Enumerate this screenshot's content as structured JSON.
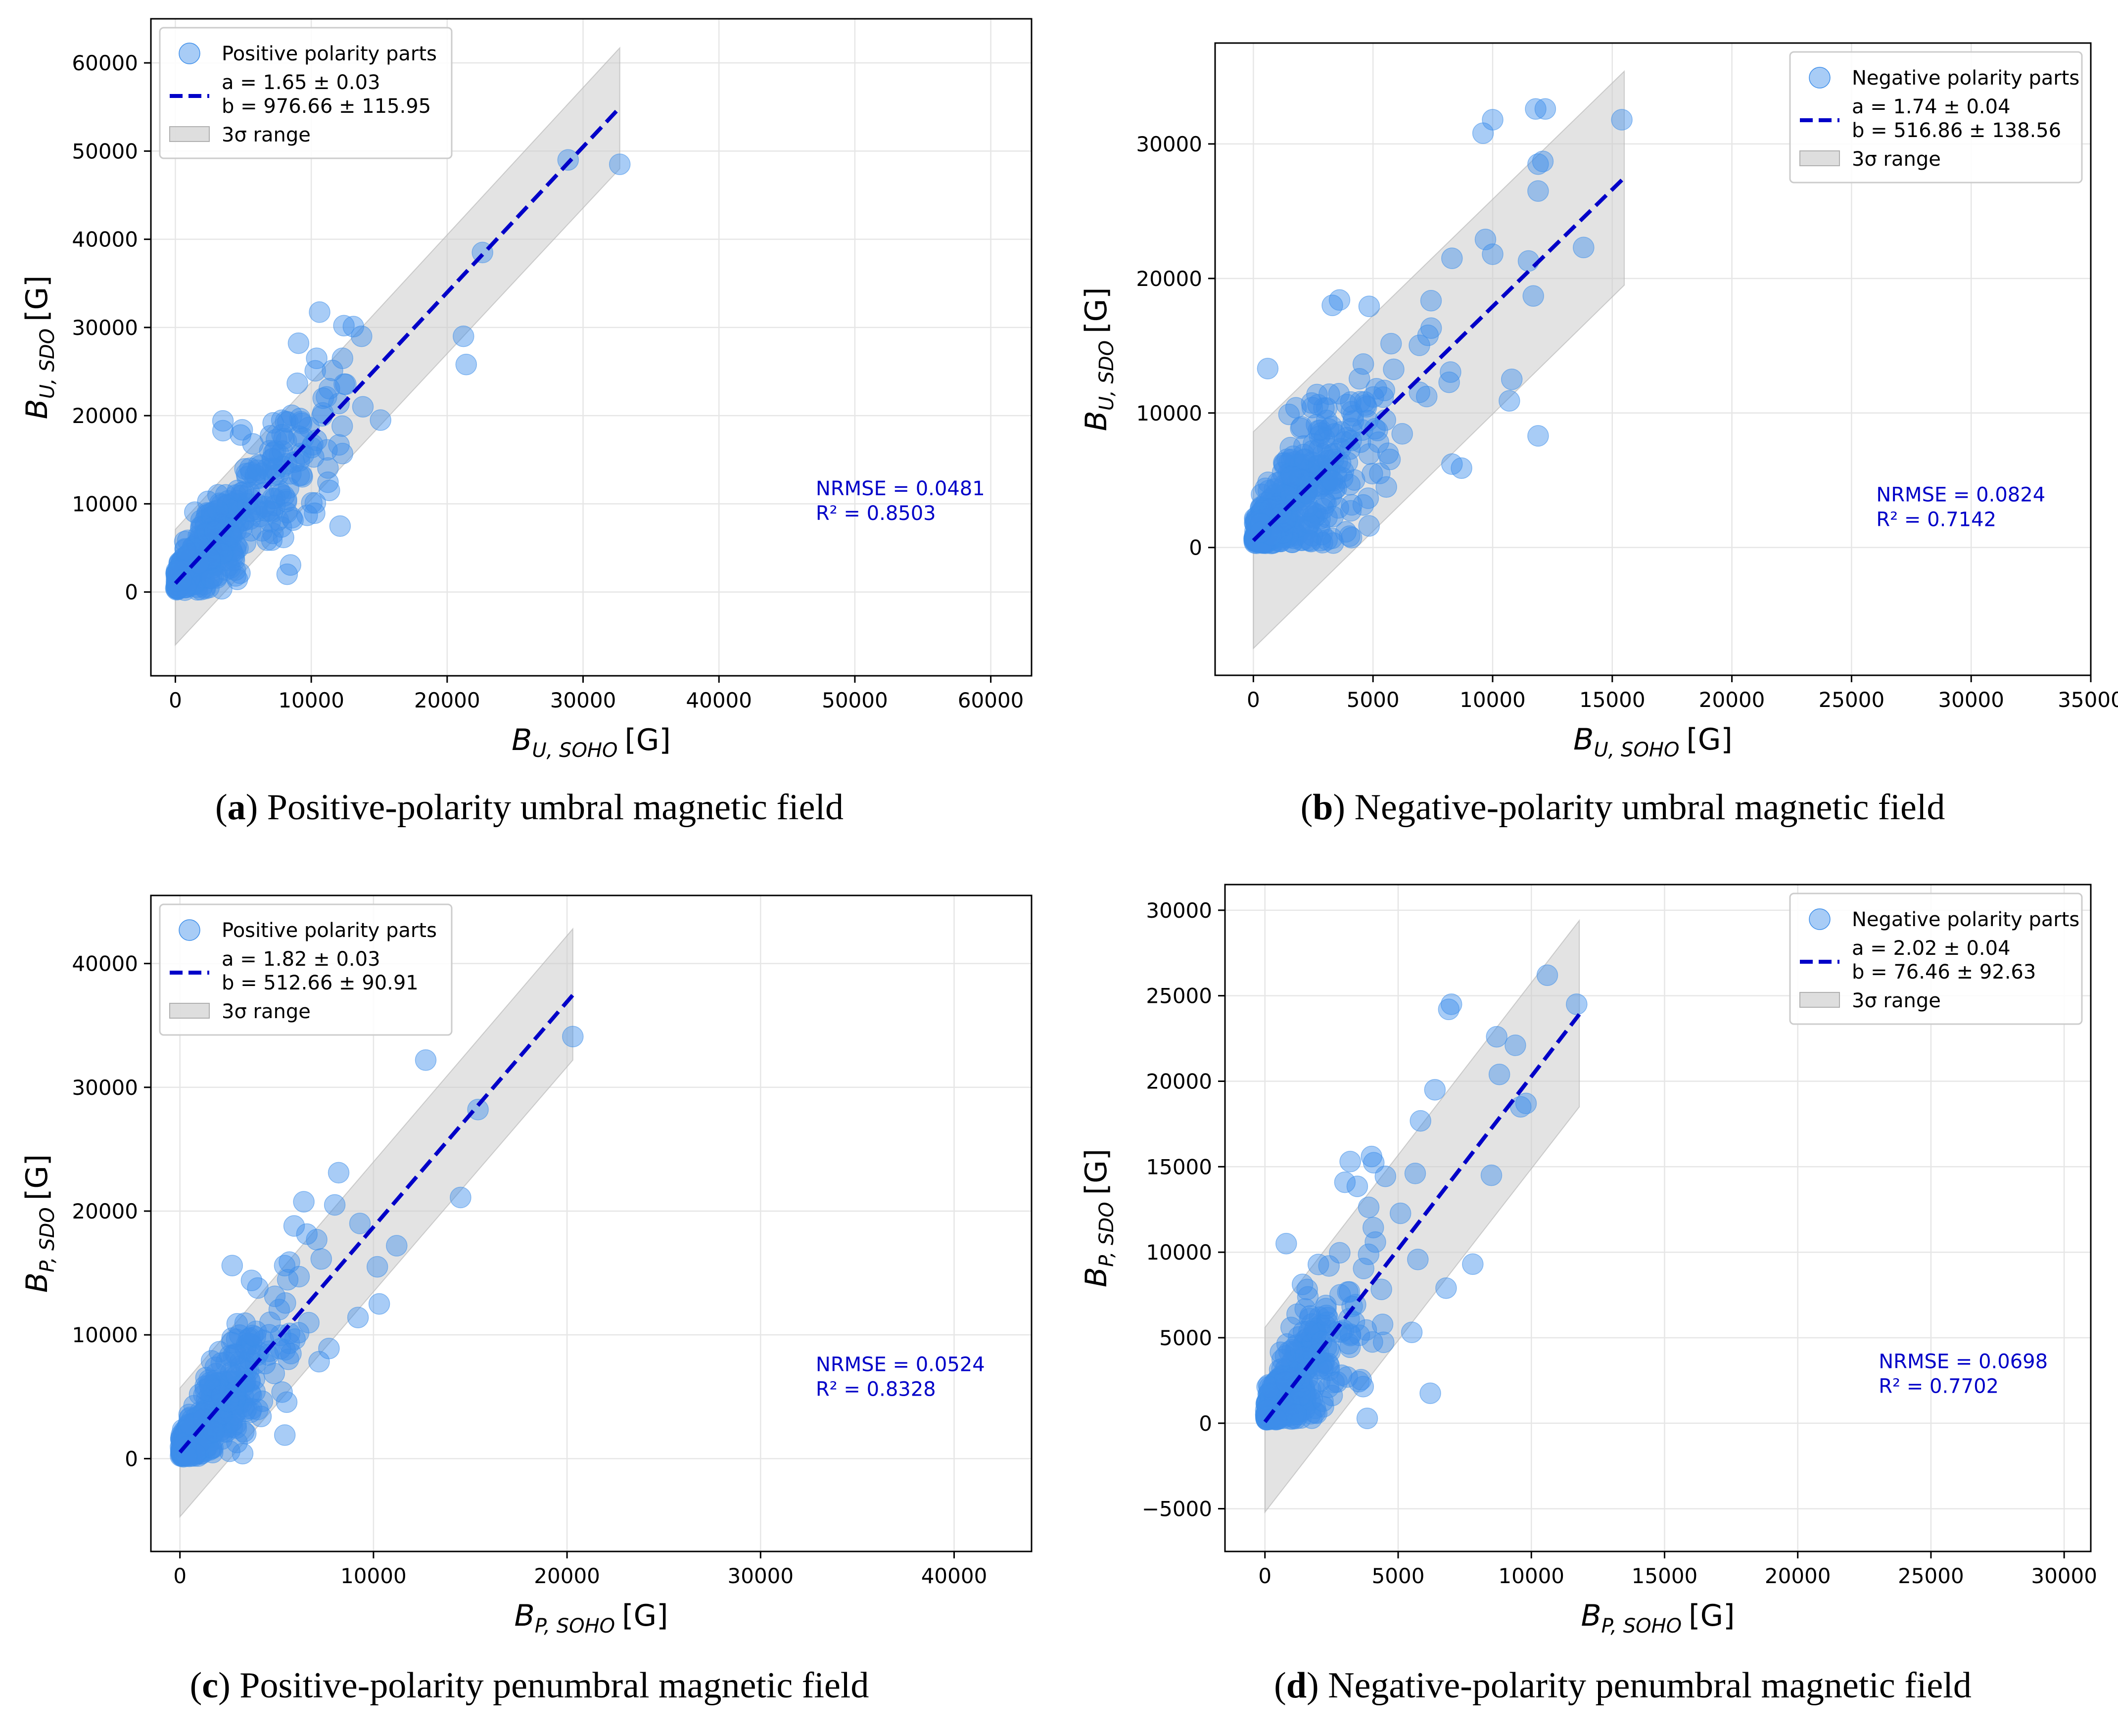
{
  "figure": {
    "panels": [
      {
        "id": "a",
        "caption_letter": "a",
        "caption_text": " Positive-polarity umbral magnetic field"
      },
      {
        "id": "b",
        "caption_letter": "b",
        "caption_text": " Negative-polarity umbral magnetic field"
      },
      {
        "id": "c",
        "caption_letter": "c",
        "caption_text": " Positive-polarity penumbral magnetic field"
      },
      {
        "id": "d",
        "caption_letter": "d",
        "caption_text": " Negative-polarity penumbral magnetic field"
      }
    ]
  },
  "colors": {
    "points": "#3d8eea",
    "fit_line": "#0000c8",
    "band": "#c8c8c8",
    "stats_text": "#0000c8",
    "grid": "#e6e6e6"
  },
  "chart_data": [
    {
      "type": "scatter",
      "panel": "a",
      "xlabel": {
        "main": "B",
        "sub": "U, SOHO",
        "unit": "[G]"
      },
      "ylabel": {
        "main": "B",
        "sub": "U, SDO",
        "unit": "[G]"
      },
      "xlim": [
        -1800,
        63000
      ],
      "ylim": [
        -9500,
        65000
      ],
      "xticks": [
        0,
        10000,
        20000,
        30000,
        40000,
        50000,
        60000
      ],
      "yticks": [
        0,
        10000,
        20000,
        30000,
        40000,
        50000,
        60000
      ],
      "xtick_labels": [
        "0",
        "10000",
        "20000",
        "30000",
        "40000",
        "50000",
        "60000"
      ],
      "ytick_labels": [
        "0",
        "10000",
        "20000",
        "30000",
        "40000",
        "50000",
        "60000"
      ],
      "legend": {
        "position": "top-left",
        "points_label": "Positive polarity parts",
        "fit_label_a": "a = 1.65 ± 0.03",
        "fit_label_b": "b = 976.66 ± 115.95",
        "band_label": "3σ range"
      },
      "fit": {
        "slope": 1.65,
        "intercept": 976.66,
        "x_range": [
          0,
          32700
        ]
      },
      "band": {
        "x_range": [
          0,
          32700
        ],
        "lower_at_start": -6000,
        "upper_at_start": 7100,
        "lower_at_end": 48000,
        "upper_at_end": 61700
      },
      "stats": {
        "nrmse": "NRMSE = 0.0481",
        "r2": "R² = 0.8503",
        "position": "lower-right"
      },
      "highlight_points": [
        [
          28900,
          49000
        ],
        [
          32700,
          48500
        ],
        [
          22600,
          38500
        ],
        [
          21200,
          29000
        ],
        [
          21400,
          25800
        ],
        [
          13700,
          29000
        ],
        [
          12400,
          30200
        ],
        [
          13100,
          30100
        ],
        [
          15100,
          19500
        ],
        [
          10400,
          26500
        ],
        [
          12300,
          26500
        ],
        [
          3500,
          19400
        ],
        [
          3500,
          18300
        ],
        [
          4800,
          17800
        ],
        [
          9700,
          8700
        ],
        [
          10300,
          10100
        ],
        [
          12300,
          15700
        ],
        [
          13800,
          21000
        ]
      ],
      "cluster": {
        "count": 520,
        "seed": 11,
        "x_scale": 3200,
        "x_max": 12500,
        "x_min": 0,
        "slope": 1.65,
        "intercept": 977,
        "noise_base": 900,
        "noise_prop": 0.3,
        "y_min": 200
      }
    },
    {
      "type": "scatter",
      "panel": "b",
      "xlabel": {
        "main": "B",
        "sub": "U, SOHO",
        "unit": "[G]"
      },
      "ylabel": {
        "main": "B",
        "sub": "U, SDO",
        "unit": "[G]"
      },
      "xlim": [
        -1600,
        35000
      ],
      "ylim": [
        -9500,
        37500
      ],
      "xticks": [
        0,
        5000,
        10000,
        15000,
        20000,
        25000,
        30000,
        35000
      ],
      "yticks": [
        0,
        10000,
        20000,
        30000
      ],
      "xtick_labels": [
        "0",
        "5000",
        "10000",
        "15000",
        "20000",
        "25000",
        "30000",
        "35000"
      ],
      "ytick_labels": [
        "0",
        "10000",
        "20000",
        "30000"
      ],
      "legend": {
        "position": "top-right",
        "points_label": "Negative polarity parts",
        "fit_label_a": "a = 1.74 ± 0.04",
        "fit_label_b": "b = 516.86 ± 138.56",
        "band_label": "3σ range"
      },
      "fit": {
        "slope": 1.74,
        "intercept": 516.86,
        "x_range": [
          0,
          15500
        ]
      },
      "band": {
        "x_range": [
          0,
          15500
        ],
        "lower_at_start": -7500,
        "upper_at_start": 8600,
        "lower_at_end": 19500,
        "upper_at_end": 35400
      },
      "stats": {
        "nrmse": "NRMSE = 0.0824",
        "r2": "R² = 0.7142",
        "position": "lower-right"
      },
      "highlight_points": [
        [
          11800,
          32600
        ],
        [
          12200,
          32600
        ],
        [
          10000,
          31800
        ],
        [
          9600,
          30800
        ],
        [
          15400,
          31800
        ],
        [
          12100,
          28700
        ],
        [
          11900,
          28500
        ],
        [
          11900,
          26500
        ],
        [
          13800,
          22300
        ],
        [
          9700,
          22900
        ],
        [
          10000,
          21800
        ],
        [
          8300,
          21500
        ],
        [
          11500,
          21300
        ],
        [
          11700,
          18700
        ],
        [
          11900,
          8300
        ],
        [
          8700,
          5900
        ],
        [
          8300,
          6200
        ],
        [
          600,
          13300
        ],
        [
          3300,
          18000
        ],
        [
          3600,
          18400
        ],
        [
          10800,
          12500
        ],
        [
          10700,
          10900
        ]
      ],
      "cluster": {
        "count": 460,
        "seed": 23,
        "x_scale": 1900,
        "x_max": 8500,
        "x_min": 0,
        "slope": 1.74,
        "intercept": 517,
        "noise_base": 900,
        "noise_prop": 0.42,
        "y_min": 300
      }
    },
    {
      "type": "scatter",
      "panel": "c",
      "xlabel": {
        "main": "B",
        "sub": "P, SOHO",
        "unit": "[G]"
      },
      "ylabel": {
        "main": "B",
        "sub": "P, SDO",
        "unit": "[G]"
      },
      "xlim": [
        -1500,
        44000
      ],
      "ylim": [
        -7500,
        45500
      ],
      "xticks": [
        0,
        10000,
        20000,
        30000,
        40000
      ],
      "yticks": [
        0,
        10000,
        20000,
        30000,
        40000
      ],
      "xtick_labels": [
        "0",
        "10000",
        "20000",
        "30000",
        "40000"
      ],
      "ytick_labels": [
        "0",
        "10000",
        "20000",
        "30000",
        "40000"
      ],
      "legend": {
        "position": "top-left",
        "points_label": "Positive polarity parts",
        "fit_label_a": "a = 1.82 ± 0.03",
        "fit_label_b": "b = 512.66 ± 90.91",
        "band_label": "3σ range"
      },
      "fit": {
        "slope": 1.82,
        "intercept": 512.66,
        "x_range": [
          0,
          20300
        ]
      },
      "band": {
        "x_range": [
          0,
          20300
        ],
        "lower_at_start": -4700,
        "upper_at_start": 5700,
        "lower_at_end": 32200,
        "upper_at_end": 42800
      },
      "stats": {
        "nrmse": "NRMSE = 0.0524",
        "r2": "R² = 0.8328",
        "position": "lower-right"
      },
      "highlight_points": [
        [
          20300,
          34100
        ],
        [
          12700,
          32200
        ],
        [
          15400,
          28200
        ],
        [
          14500,
          21100
        ],
        [
          8200,
          23100
        ],
        [
          8000,
          20500
        ],
        [
          11200,
          17200
        ],
        [
          10200,
          15500
        ],
        [
          10300,
          12500
        ],
        [
          9200,
          11400
        ],
        [
          7700,
          8900
        ],
        [
          2700,
          15600
        ],
        [
          3700,
          14400
        ],
        [
          5900,
          18800
        ],
        [
          9300,
          19000
        ]
      ],
      "cluster": {
        "count": 470,
        "seed": 37,
        "x_scale": 1700,
        "x_max": 7500,
        "x_min": 0,
        "slope": 1.82,
        "intercept": 513,
        "noise_base": 700,
        "noise_prop": 0.3,
        "y_min": 150
      }
    },
    {
      "type": "scatter",
      "panel": "d",
      "xlabel": {
        "main": "B",
        "sub": "P, SOHO",
        "unit": "[G]"
      },
      "ylabel": {
        "main": "B",
        "sub": "P, SDO",
        "unit": "[G]"
      },
      "xlim": [
        -1500,
        31000
      ],
      "ylim": [
        -7500,
        31500
      ],
      "xticks": [
        0,
        5000,
        10000,
        15000,
        20000,
        25000,
        30000
      ],
      "yticks": [
        -5000,
        0,
        5000,
        10000,
        15000,
        20000,
        25000,
        30000
      ],
      "xtick_labels": [
        "0",
        "5000",
        "10000",
        "15000",
        "20000",
        "25000",
        "30000"
      ],
      "ytick_labels": [
        "−5000",
        "0",
        "5000",
        "10000",
        "15000",
        "20000",
        "25000",
        "30000"
      ],
      "legend": {
        "position": "top-right",
        "points_label": "Negative polarity parts",
        "fit_label_a": "a = 2.02 ± 0.04",
        "fit_label_b": "b = 76.46 ± 92.63",
        "band_label": "3σ range"
      },
      "fit": {
        "slope": 2.02,
        "intercept": 76.46,
        "x_range": [
          0,
          11800
        ]
      },
      "band": {
        "x_range": [
          0,
          11800
        ],
        "lower_at_start": -5200,
        "upper_at_start": 5600,
        "lower_at_end": 18500,
        "upper_at_end": 29400
      },
      "stats": {
        "nrmse": "NRMSE = 0.0698",
        "r2": "R² = 0.7702",
        "position": "lower-right"
      },
      "highlight_points": [
        [
          10600,
          26200
        ],
        [
          11700,
          24500
        ],
        [
          7000,
          24500
        ],
        [
          6900,
          24200
        ],
        [
          8700,
          22600
        ],
        [
          9400,
          22100
        ],
        [
          8800,
          20400
        ],
        [
          9800,
          18700
        ],
        [
          9600,
          18500
        ],
        [
          8500,
          14500
        ],
        [
          7800,
          9300
        ],
        [
          6800,
          7900
        ],
        [
          800,
          10500
        ],
        [
          3200,
          15300
        ],
        [
          4000,
          15600
        ]
      ],
      "cluster": {
        "count": 400,
        "seed": 53,
        "x_scale": 1300,
        "x_max": 6500,
        "x_min": 0,
        "slope": 2.02,
        "intercept": 76,
        "noise_base": 700,
        "noise_prop": 0.42,
        "y_min": 200
      }
    }
  ]
}
